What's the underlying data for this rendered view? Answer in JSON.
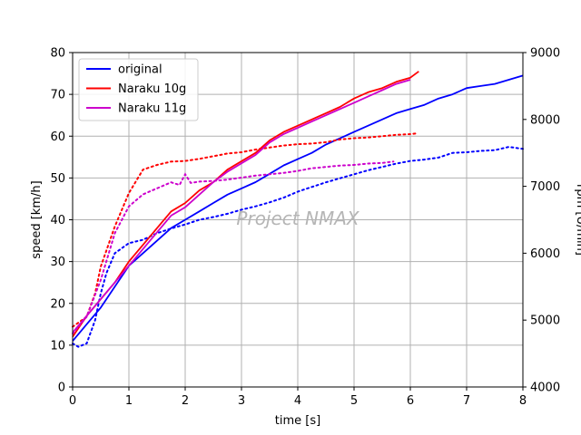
{
  "chart_data": {
    "type": "line",
    "watermark": "Project NMAX",
    "xlabel": "time [s]",
    "ylabel_left": "speed [km/h]",
    "ylabel_right": "rpm [U/min]",
    "xlim": [
      0,
      8
    ],
    "ylim_left": [
      0,
      80
    ],
    "ylim_right": [
      4000,
      9000
    ],
    "x_ticks": [
      "0",
      "1",
      "2",
      "3",
      "4",
      "5",
      "6",
      "7",
      "8"
    ],
    "y_ticks_left": [
      "0",
      "10",
      "20",
      "30",
      "40",
      "50",
      "60",
      "70",
      "80"
    ],
    "y_ticks_right": [
      "4000",
      "5000",
      "6000",
      "7000",
      "8000",
      "9000"
    ],
    "grid": true,
    "legend_position": "top-left",
    "legend": [
      "original",
      "Naraku 10g",
      "Naraku 11g"
    ],
    "series": [
      {
        "name": "original",
        "color": "#0000ff",
        "speed": [
          [
            0,
            11
          ],
          [
            0.25,
            15
          ],
          [
            0.5,
            19
          ],
          [
            0.6,
            21
          ],
          [
            0.75,
            24
          ],
          [
            1.0,
            29
          ],
          [
            1.25,
            32
          ],
          [
            1.5,
            35
          ],
          [
            1.75,
            38
          ],
          [
            2.0,
            40
          ],
          [
            2.25,
            42
          ],
          [
            2.5,
            44
          ],
          [
            2.75,
            46
          ],
          [
            3.0,
            47.5
          ],
          [
            3.25,
            49
          ],
          [
            3.5,
            51
          ],
          [
            3.75,
            53
          ],
          [
            4.0,
            54.5
          ],
          [
            4.25,
            56
          ],
          [
            4.5,
            58
          ],
          [
            4.75,
            59.5
          ],
          [
            5.0,
            61
          ],
          [
            5.25,
            62.5
          ],
          [
            5.5,
            64
          ],
          [
            5.75,
            65.5
          ],
          [
            6.0,
            66.5
          ],
          [
            6.25,
            67.5
          ],
          [
            6.5,
            69
          ],
          [
            6.75,
            70
          ],
          [
            7.0,
            71.5
          ],
          [
            7.25,
            72
          ],
          [
            7.5,
            72.5
          ],
          [
            7.75,
            73.5
          ],
          [
            8.0,
            74.5
          ]
        ],
        "rpm": [
          [
            0,
            4650
          ],
          [
            0.1,
            4600
          ],
          [
            0.25,
            4650
          ],
          [
            0.4,
            5000
          ],
          [
            0.5,
            5400
          ],
          [
            0.6,
            5700
          ],
          [
            0.75,
            6000
          ],
          [
            1.0,
            6150
          ],
          [
            1.25,
            6200
          ],
          [
            1.5,
            6300
          ],
          [
            1.75,
            6370
          ],
          [
            2.0,
            6430
          ],
          [
            2.25,
            6500
          ],
          [
            2.5,
            6540
          ],
          [
            2.75,
            6590
          ],
          [
            3.0,
            6650
          ],
          [
            3.25,
            6700
          ],
          [
            3.5,
            6760
          ],
          [
            3.75,
            6830
          ],
          [
            4.0,
            6920
          ],
          [
            4.25,
            6990
          ],
          [
            4.5,
            7060
          ],
          [
            4.75,
            7120
          ],
          [
            5.0,
            7180
          ],
          [
            5.25,
            7240
          ],
          [
            5.5,
            7290
          ],
          [
            5.75,
            7340
          ],
          [
            6.0,
            7380
          ],
          [
            6.25,
            7400
          ],
          [
            6.5,
            7430
          ],
          [
            6.75,
            7500
          ],
          [
            7.0,
            7510
          ],
          [
            7.25,
            7530
          ],
          [
            7.5,
            7540
          ],
          [
            7.75,
            7590
          ],
          [
            8.0,
            7560
          ]
        ]
      },
      {
        "name": "Naraku 10g",
        "color": "#ff0000",
        "speed": [
          [
            0,
            12
          ],
          [
            0.25,
            17
          ],
          [
            0.5,
            21
          ],
          [
            0.75,
            25
          ],
          [
            1.0,
            30
          ],
          [
            1.25,
            34
          ],
          [
            1.5,
            38
          ],
          [
            1.75,
            42
          ],
          [
            2.0,
            44
          ],
          [
            2.25,
            47
          ],
          [
            2.5,
            49
          ],
          [
            2.75,
            52
          ],
          [
            3.0,
            54
          ],
          [
            3.25,
            56
          ],
          [
            3.5,
            59
          ],
          [
            3.75,
            61
          ],
          [
            4.0,
            62.5
          ],
          [
            4.25,
            64
          ],
          [
            4.5,
            65.5
          ],
          [
            4.75,
            67
          ],
          [
            5.0,
            69
          ],
          [
            5.25,
            70.5
          ],
          [
            5.5,
            71.5
          ],
          [
            5.75,
            73
          ],
          [
            6.0,
            74
          ],
          [
            6.15,
            75.5
          ]
        ],
        "rpm": [
          [
            0,
            4900
          ],
          [
            0.25,
            5050
          ],
          [
            0.4,
            5400
          ],
          [
            0.5,
            5800
          ],
          [
            0.75,
            6400
          ],
          [
            1.0,
            6900
          ],
          [
            1.25,
            7250
          ],
          [
            1.5,
            7320
          ],
          [
            1.75,
            7370
          ],
          [
            2.0,
            7380
          ],
          [
            2.25,
            7410
          ],
          [
            2.5,
            7450
          ],
          [
            2.75,
            7490
          ],
          [
            3.0,
            7510
          ],
          [
            3.25,
            7550
          ],
          [
            3.5,
            7580
          ],
          [
            3.75,
            7610
          ],
          [
            4.0,
            7630
          ],
          [
            4.25,
            7640
          ],
          [
            4.5,
            7660
          ],
          [
            4.75,
            7700
          ],
          [
            5.0,
            7720
          ],
          [
            5.25,
            7730
          ],
          [
            5.5,
            7750
          ],
          [
            5.75,
            7770
          ],
          [
            6.0,
            7780
          ],
          [
            6.1,
            7790
          ]
        ]
      },
      {
        "name": "Naraku 11g",
        "color": "#cc00cc",
        "speed": [
          [
            0,
            13
          ],
          [
            0.25,
            17
          ],
          [
            0.5,
            21
          ],
          [
            0.75,
            25
          ],
          [
            1.0,
            29
          ],
          [
            1.25,
            33
          ],
          [
            1.5,
            37
          ],
          [
            1.75,
            41
          ],
          [
            2.0,
            43
          ],
          [
            2.25,
            46
          ],
          [
            2.5,
            49
          ],
          [
            2.75,
            51.5
          ],
          [
            3.0,
            53.5
          ],
          [
            3.25,
            55.5
          ],
          [
            3.5,
            58.5
          ],
          [
            3.75,
            60.5
          ],
          [
            4.0,
            62
          ],
          [
            4.25,
            63.5
          ],
          [
            4.5,
            65
          ],
          [
            4.75,
            66.5
          ],
          [
            5.0,
            68
          ],
          [
            5.25,
            69.5
          ],
          [
            5.5,
            71
          ],
          [
            5.75,
            72.5
          ],
          [
            6.0,
            73.5
          ]
        ],
        "rpm": [
          [
            0,
            4800
          ],
          [
            0.25,
            5050
          ],
          [
            0.5,
            5600
          ],
          [
            0.75,
            6300
          ],
          [
            1.0,
            6700
          ],
          [
            1.25,
            6880
          ],
          [
            1.5,
            6970
          ],
          [
            1.75,
            7060
          ],
          [
            1.9,
            7020
          ],
          [
            2.0,
            7180
          ],
          [
            2.1,
            7050
          ],
          [
            2.25,
            7070
          ],
          [
            2.5,
            7080
          ],
          [
            2.75,
            7100
          ],
          [
            3.0,
            7130
          ],
          [
            3.25,
            7160
          ],
          [
            3.5,
            7180
          ],
          [
            3.75,
            7200
          ],
          [
            4.0,
            7230
          ],
          [
            4.25,
            7270
          ],
          [
            4.5,
            7290
          ],
          [
            4.75,
            7310
          ],
          [
            5.0,
            7320
          ],
          [
            5.25,
            7340
          ],
          [
            5.5,
            7350
          ],
          [
            5.7,
            7370
          ]
        ]
      }
    ]
  }
}
